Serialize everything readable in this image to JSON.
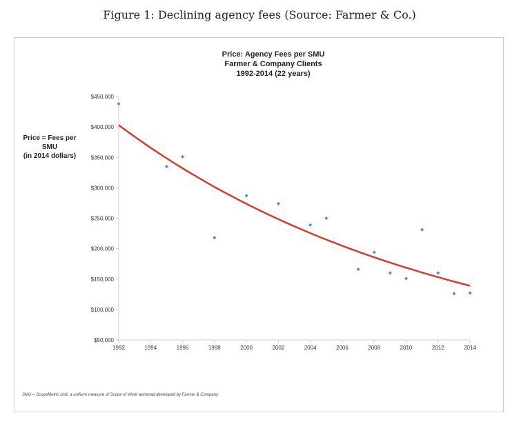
{
  "figure_caption": "Figure 1: Declining agency fees (Source: Farmer & Co.)",
  "footnote": "SMU = ScopeMetric Unit, a uniform measure of Scope of Work workload developed by Farmer & Company",
  "chart_data": {
    "type": "scatter",
    "title": [
      "Price: Agency Fees per SMU",
      "Farmer & Company Clients",
      "1992-2014 (22 years)"
    ],
    "ylabel": [
      "Price = Fees per SMU",
      "(in 2014 dollars)"
    ],
    "xlabel": "",
    "xlim": [
      1992,
      2014
    ],
    "ylim": [
      50000,
      450000
    ],
    "xticks": [
      1992,
      1994,
      1996,
      1998,
      2000,
      2002,
      2004,
      2006,
      2008,
      2010,
      2012,
      2014
    ],
    "yticks": [
      50000,
      100000,
      150000,
      200000,
      250000,
      300000,
      350000,
      400000,
      450000
    ],
    "ytick_labels": [
      "$50,000",
      "$100,000",
      "$150,000",
      "$200,000",
      "$250,000",
      "$300,000",
      "$350,000",
      "$400,000",
      "$450,000"
    ],
    "grid": false,
    "points": {
      "x": [
        1992,
        1995,
        1996,
        1998,
        2000,
        2002,
        2004,
        2005,
        2007,
        2008,
        2009,
        2010,
        2011,
        2012,
        2013,
        2014
      ],
      "y": [
        438000,
        335000,
        351000,
        218000,
        287000,
        274000,
        239000,
        250000,
        166000,
        194000,
        160000,
        151000,
        231000,
        160000,
        126000,
        127000
      ]
    },
    "trendline": {
      "type": "exponential",
      "start": [
        1992,
        403000
      ],
      "end": [
        2014,
        139000
      ]
    },
    "colors": {
      "points": "#4a8bc2",
      "trendline": "#d93a2b"
    }
  }
}
